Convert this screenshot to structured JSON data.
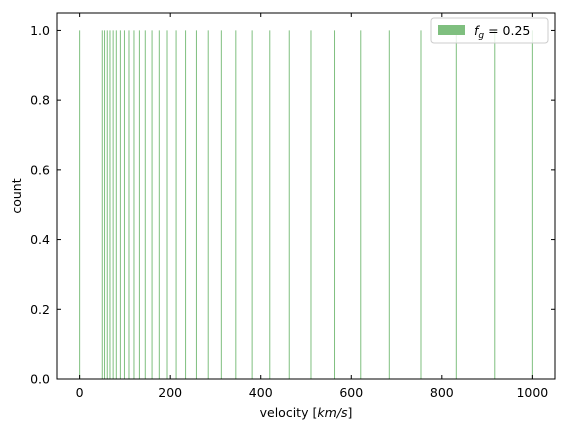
{
  "chart_data": {
    "type": "bar",
    "title": "",
    "xlabel": "velocity",
    "xlabel_unit": "km/s",
    "ylabel": "count",
    "xlim": [
      -50,
      1050
    ],
    "ylim": [
      0,
      1.05
    ],
    "xticks": [
      "0",
      "200",
      "400",
      "600",
      "800",
      "1000"
    ],
    "yticks": [
      "0.0",
      "0.2",
      "0.4",
      "0.6",
      "0.8",
      "1.0"
    ],
    "grid": false,
    "legend_position": "top-right",
    "series": [
      {
        "label_symbol": "f",
        "label_subscript": "g",
        "label_value": " = 0.25",
        "color": "#7fbf7f",
        "x": [
          0,
          50,
          55,
          61,
          67,
          74,
          81,
          90,
          99,
          109,
          120,
          132,
          145,
          160,
          176,
          193,
          213,
          234,
          258,
          284,
          313,
          345,
          381,
          420,
          463,
          511,
          563,
          621,
          684,
          754,
          832,
          917,
          1000
        ],
        "values": [
          1,
          1,
          1,
          1,
          1,
          1,
          1,
          1,
          1,
          1,
          1,
          1,
          1,
          1,
          1,
          1,
          1,
          1,
          1,
          1,
          1,
          1,
          1,
          1,
          1,
          1,
          1,
          1,
          1,
          1,
          1,
          1,
          1
        ]
      }
    ]
  }
}
